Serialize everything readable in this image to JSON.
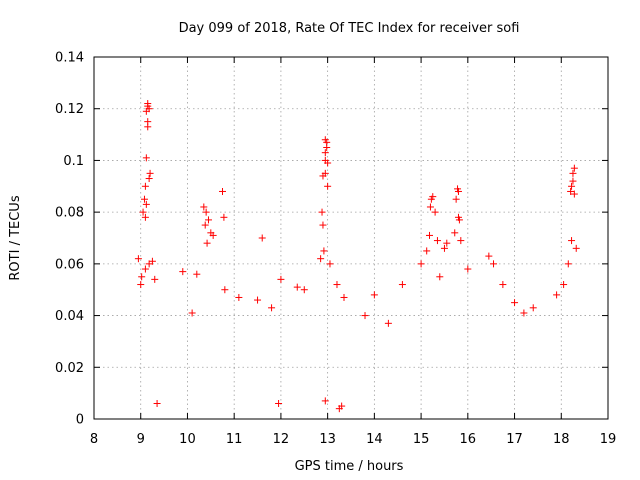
{
  "chart_data": {
    "type": "scatter",
    "title": "Day 099 of 2018, Rate Of TEC Index for receiver sofi",
    "xlabel": "GPS time / hours",
    "ylabel": "ROTI / TECUs",
    "xlim": [
      8,
      19
    ],
    "ylim": [
      0,
      0.14
    ],
    "xticks": [
      "8",
      "9",
      "10",
      "11",
      "12",
      "13",
      "14",
      "15",
      "16",
      "17",
      "18",
      "19"
    ],
    "yticks": [
      "0",
      "0.02",
      "0.04",
      "0.06",
      "0.08",
      "0.1",
      "0.12",
      "0.14"
    ],
    "grid": true,
    "marker": "+",
    "color": "#ff0000",
    "series": [
      {
        "name": "ROTI",
        "points": [
          [
            9.05,
            0.08
          ],
          [
            9.08,
            0.085
          ],
          [
            9.1,
            0.09
          ],
          [
            9.1,
            0.078
          ],
          [
            9.12,
            0.083
          ],
          [
            9.12,
            0.101
          ],
          [
            9.15,
            0.113
          ],
          [
            9.15,
            0.115
          ],
          [
            9.12,
            0.119
          ],
          [
            9.15,
            0.121
          ],
          [
            9.15,
            0.122
          ],
          [
            9.18,
            0.12
          ],
          [
            9.18,
            0.093
          ],
          [
            9.2,
            0.095
          ],
          [
            9.1,
            0.058
          ],
          [
            9.18,
            0.06
          ],
          [
            9.25,
            0.061
          ],
          [
            9.02,
            0.055
          ],
          [
            10.35,
            0.082
          ],
          [
            10.4,
            0.08
          ],
          [
            10.38,
            0.075
          ],
          [
            10.42,
            0.068
          ],
          [
            10.5,
            0.072
          ],
          [
            10.55,
            0.071
          ],
          [
            10.75,
            0.088
          ],
          [
            10.78,
            0.078
          ],
          [
            10.45,
            0.077
          ],
          [
            11.6,
            0.07
          ],
          [
            12.9,
            0.094
          ],
          [
            12.95,
            0.095
          ],
          [
            12.95,
            0.1
          ],
          [
            12.95,
            0.103
          ],
          [
            12.98,
            0.105
          ],
          [
            12.98,
            0.107
          ],
          [
            12.95,
            0.108
          ],
          [
            13.0,
            0.099
          ],
          [
            12.88,
            0.08
          ],
          [
            12.9,
            0.075
          ],
          [
            12.92,
            0.065
          ],
          [
            13.0,
            0.09
          ],
          [
            12.85,
            0.062
          ],
          [
            13.05,
            0.06
          ],
          [
            15.2,
            0.082
          ],
          [
            15.25,
            0.086
          ],
          [
            15.22,
            0.085
          ],
          [
            15.18,
            0.071
          ],
          [
            15.3,
            0.08
          ],
          [
            15.35,
            0.069
          ],
          [
            15.5,
            0.066
          ],
          [
            15.55,
            0.068
          ],
          [
            15.12,
            0.065
          ],
          [
            15.75,
            0.085
          ],
          [
            15.78,
            0.089
          ],
          [
            15.8,
            0.088
          ],
          [
            15.8,
            0.078
          ],
          [
            15.82,
            0.077
          ],
          [
            15.72,
            0.072
          ],
          [
            15.85,
            0.069
          ],
          [
            18.2,
            0.088
          ],
          [
            18.22,
            0.09
          ],
          [
            18.25,
            0.092
          ],
          [
            18.25,
            0.095
          ],
          [
            18.28,
            0.097
          ],
          [
            18.28,
            0.087
          ],
          [
            18.22,
            0.069
          ],
          [
            18.32,
            0.066
          ],
          [
            18.15,
            0.06
          ],
          [
            8.95,
            0.062
          ],
          [
            9.0,
            0.052
          ],
          [
            9.3,
            0.054
          ],
          [
            9.9,
            0.057
          ],
          [
            10.2,
            0.056
          ],
          [
            10.8,
            0.05
          ],
          [
            11.1,
            0.047
          ],
          [
            12.0,
            0.054
          ],
          [
            12.35,
            0.051
          ],
          [
            12.5,
            0.05
          ],
          [
            13.2,
            0.052
          ],
          [
            13.35,
            0.047
          ],
          [
            14.0,
            0.048
          ],
          [
            14.6,
            0.052
          ],
          [
            15.0,
            0.06
          ],
          [
            15.4,
            0.055
          ],
          [
            16.0,
            0.058
          ],
          [
            16.45,
            0.063
          ],
          [
            16.55,
            0.06
          ],
          [
            16.75,
            0.052
          ],
          [
            17.0,
            0.045
          ],
          [
            17.4,
            0.043
          ],
          [
            17.9,
            0.048
          ],
          [
            18.05,
            0.052
          ],
          [
            17.2,
            0.041
          ],
          [
            14.3,
            0.037
          ],
          [
            11.5,
            0.046
          ],
          [
            11.8,
            0.043
          ],
          [
            13.8,
            0.04
          ],
          [
            10.1,
            0.041
          ],
          [
            13.25,
            0.004
          ],
          [
            13.3,
            0.005
          ],
          [
            12.95,
            0.007
          ],
          [
            11.95,
            0.006
          ],
          [
            9.35,
            0.006
          ]
        ]
      }
    ]
  }
}
